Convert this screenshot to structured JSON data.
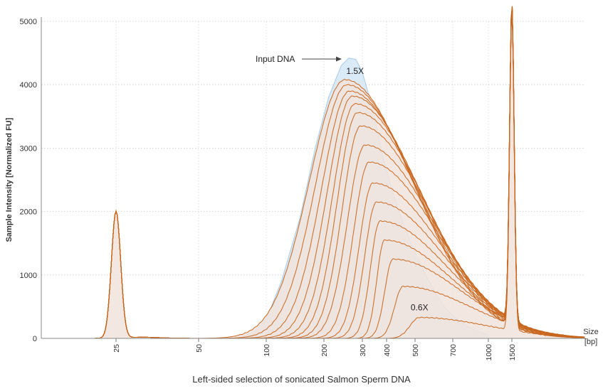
{
  "chart_data": {
    "type": "line",
    "caption": "Left-sided selection of sonicated Salmon Sperm DNA",
    "ylabel": "Sample Intensity [Normalized FU]",
    "xlabel_lines": [
      "Size",
      "[bp]"
    ],
    "ylim": [
      0,
      5000
    ],
    "y_ticks": [
      0,
      1000,
      2000,
      3000,
      4000,
      5000
    ],
    "x_ticks": [
      "25",
      "50",
      "100",
      "200",
      "300",
      "400",
      "500",
      "700",
      "1000",
      "1500"
    ],
    "grid": true,
    "annotations": {
      "input_label": "Input DNA",
      "high_ratio_label": "1.5X",
      "low_ratio_label": "0.6X"
    },
    "colors": {
      "sample": "#c8661e",
      "sample_fill": "#f1e4dc",
      "input_fill": "#daeaf6",
      "input_line": "#a9cbe6"
    },
    "input_series": {
      "name": "Input DNA",
      "x": [
        75,
        90,
        100,
        120,
        150,
        180,
        210,
        240,
        260,
        280,
        300,
        340,
        380,
        420,
        460,
        500,
        550,
        600,
        650,
        700,
        800,
        900,
        1000
      ],
      "y": [
        0,
        120,
        300,
        900,
        1900,
        3000,
        3800,
        4300,
        4420,
        4400,
        4200,
        3600,
        2900,
        2300,
        1750,
        1350,
        1000,
        720,
        500,
        360,
        200,
        110,
        60
      ]
    },
    "marker_peaks": [
      {
        "size": 25,
        "height": 2000
      },
      {
        "size": 1500,
        "height": 5000
      }
    ],
    "series": [
      {
        "label": "1.5X",
        "threshold": 100,
        "peak_size": 250,
        "peak": 4080
      },
      {
        "threshold": 115,
        "peak_size": 255,
        "peak": 4000
      },
      {
        "threshold": 130,
        "peak_size": 262,
        "peak": 3900
      },
      {
        "threshold": 145,
        "peak_size": 270,
        "peak": 3820
      },
      {
        "threshold": 160,
        "peak_size": 278,
        "peak": 3700
      },
      {
        "threshold": 175,
        "peak_size": 285,
        "peak": 3560
      },
      {
        "threshold": 190,
        "peak_size": 295,
        "peak": 3350
      },
      {
        "threshold": 205,
        "peak_size": 310,
        "peak": 3050
      },
      {
        "threshold": 225,
        "peak_size": 325,
        "peak": 2780
      },
      {
        "threshold": 245,
        "peak_size": 340,
        "peak": 2450
      },
      {
        "threshold": 265,
        "peak_size": 355,
        "peak": 2150
      },
      {
        "threshold": 290,
        "peak_size": 370,
        "peak": 1850
      },
      {
        "threshold": 320,
        "peak_size": 390,
        "peak": 1550
      },
      {
        "threshold": 350,
        "peak_size": 420,
        "peak": 1250
      },
      {
        "threshold": 390,
        "peak_size": 455,
        "peak": 820
      },
      {
        "label": "0.6X",
        "threshold": 440,
        "peak_size": 520,
        "peak": 330
      }
    ]
  }
}
